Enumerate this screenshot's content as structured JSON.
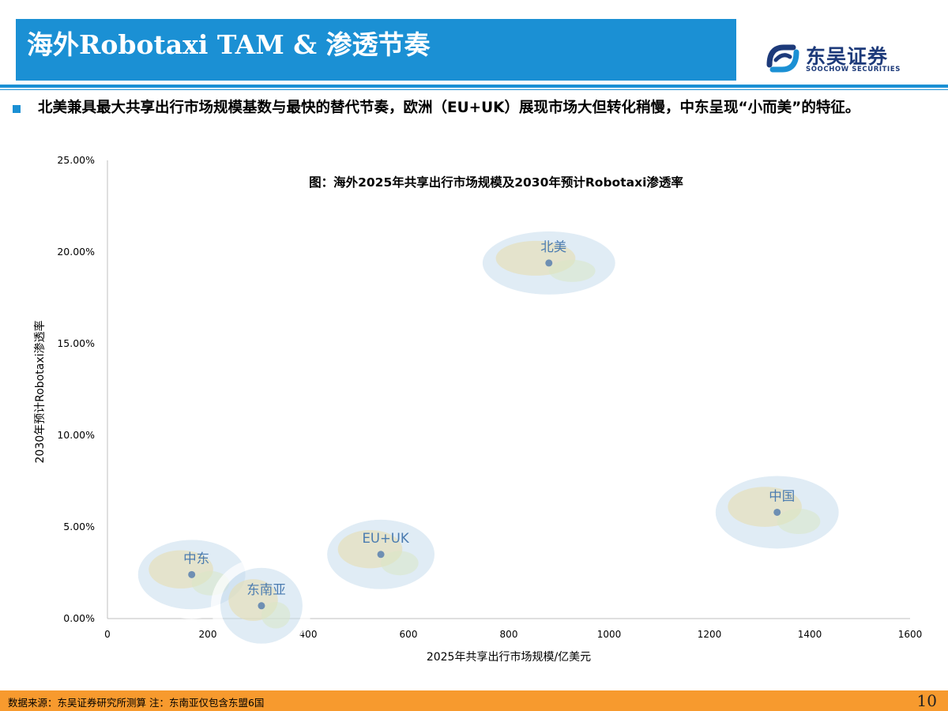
{
  "header": {
    "title": "海外Robotaxi TAM & 渗透节奏",
    "logo_cn": "东吴证券",
    "logo_en": "SOOCHOW SECURITIES"
  },
  "bullet": {
    "text": "北美兼具最大共享出行市场规模基数与最快的替代节奏，欧洲（EU+UK）展现市场大但转化稍慢，中东呈现“小而美”的特征。"
  },
  "chart_data": {
    "type": "scatter",
    "title": "图：海外2025年共享出行市场规模及2030年预计Robotaxi渗透率",
    "xlabel": "2025年共享出行市场规模/亿美元",
    "ylabel": "2030年预计Robotaxi渗透率",
    "xlim": [
      0,
      1600
    ],
    "ylim": [
      0,
      25
    ],
    "x_ticks": [
      "0",
      "200",
      "400",
      "600",
      "800",
      "1000",
      "1200",
      "1400",
      "1600"
    ],
    "y_ticks": [
      "0.00%",
      "5.00%",
      "10.00%",
      "15.00%",
      "20.00%",
      "25.00%"
    ],
    "grid": false,
    "points": [
      {
        "label": "北美",
        "x": 880,
        "y": 19.4
      },
      {
        "label": "中国",
        "x": 1335,
        "y": 5.8
      },
      {
        "label": "EU+UK",
        "x": 545,
        "y": 3.5
      },
      {
        "label": "中东",
        "x": 168,
        "y": 2.4
      },
      {
        "label": "东南亚",
        "x": 307,
        "y": 0.7
      }
    ],
    "colors": {
      "axis": "#bfbfbf",
      "point": "#6e8fb3",
      "point_label": "#4a7bb0",
      "map_land": "#e6ddb0",
      "map_sea": "#c6ddec"
    }
  },
  "footer": {
    "source": "数据来源：东吴证券研究所测算   注：东南亚仅包含东盟6国",
    "page": "10"
  }
}
